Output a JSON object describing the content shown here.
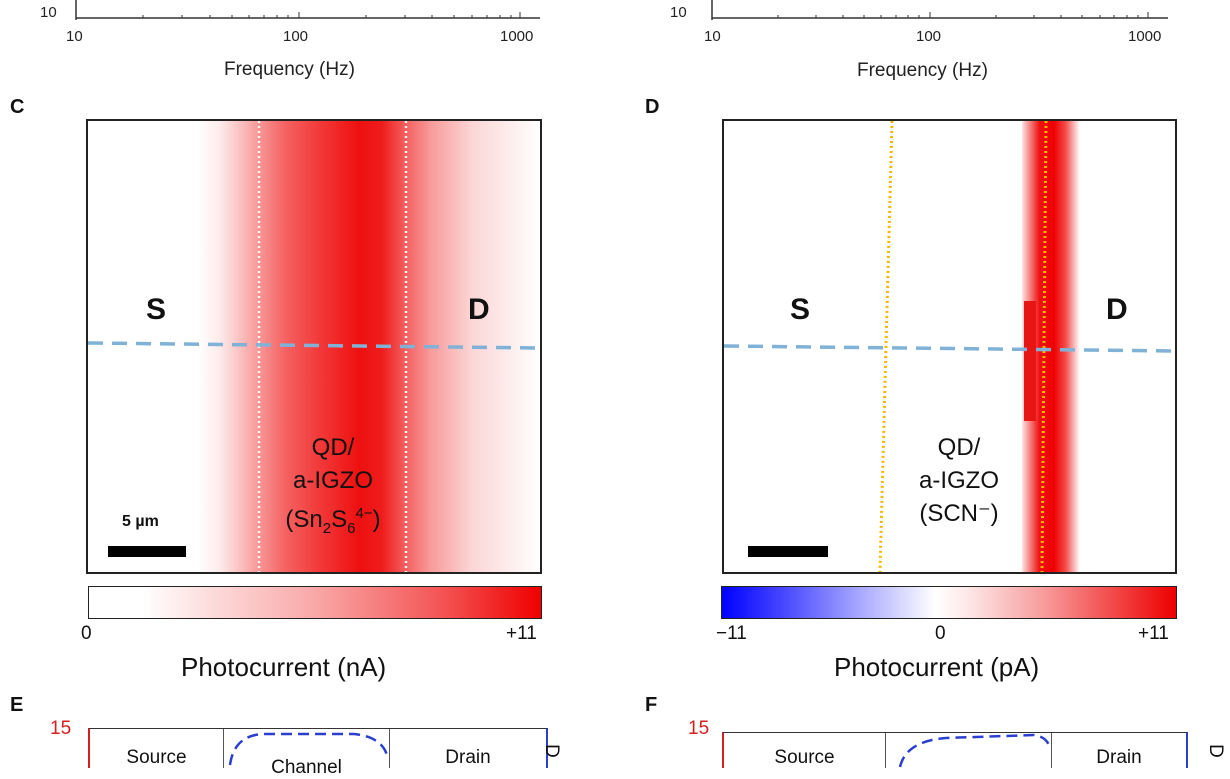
{
  "top_axes": [
    {
      "id": "left",
      "y_tick_fragment": "10",
      "x_tick_labels": [
        "10",
        "100",
        "1000"
      ],
      "x_title": "Frequency (Hz)"
    },
    {
      "id": "right",
      "y_tick_fragment": "10",
      "x_tick_labels": [
        "10",
        "100",
        "1000"
      ],
      "x_title": "Frequency (Hz)"
    }
  ],
  "panels": {
    "C": {
      "letter": "C",
      "source_label": "S",
      "drain_label": "D",
      "region_line1": "QD/",
      "region_line2": "a-IGZO",
      "region_line3_prefix": "(Sn",
      "region_sub1": "2",
      "region_mid": "S",
      "region_sub2": "6",
      "region_sup": "4−",
      "region_suffix": ")",
      "scalebar_label": "5 µm",
      "colorbar_min": "0",
      "colorbar_max": "+11",
      "colorbar_title": "Photocurrent (nA)",
      "colorbar_colors": [
        "#ffffff",
        "#ff0000"
      ],
      "line_color": "#7fb2d6",
      "boundary_color": "#f3f3f3"
    },
    "D": {
      "letter": "D",
      "source_label": "S",
      "drain_label": "D",
      "region_line1": "QD/",
      "region_line2": "a-IGZO",
      "region_line3": "(SCN⁻)",
      "colorbar_min": "−11",
      "colorbar_mid": "0",
      "colorbar_max": "+11",
      "colorbar_title": "Photocurrent (pA)",
      "colorbar_colors": [
        "#0000ff",
        "#ffffff",
        "#ff0000"
      ],
      "line_color": "#7fb2d6",
      "boundary_color": "#f2b800"
    },
    "E": {
      "letter": "E",
      "y_tick": "15",
      "source_label": "Source",
      "channel_label": "Channel",
      "drain_label": "Drain",
      "side_label": "D"
    },
    "F": {
      "letter": "F",
      "y_tick": "15",
      "source_label": "Source",
      "drain_label": "Drain",
      "side_label": "D"
    }
  }
}
